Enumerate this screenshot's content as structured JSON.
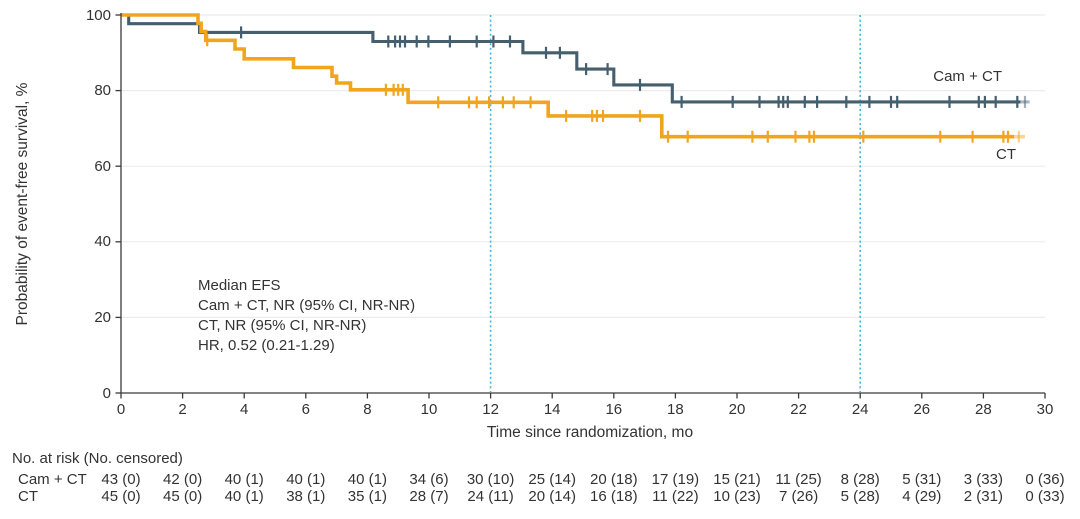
{
  "chart_data": {
    "type": "line",
    "subtype": "kaplan-meier-step",
    "title": "",
    "xlabel": "Time since randomization, mo",
    "ylabel": "Probability of event-free survival, %",
    "xlim": [
      0,
      30
    ],
    "ylim": [
      0,
      100
    ],
    "xticks": [
      0,
      2,
      4,
      6,
      8,
      10,
      12,
      14,
      16,
      18,
      20,
      22,
      24,
      26,
      28,
      30
    ],
    "yticks": [
      0,
      20,
      40,
      60,
      80,
      100
    ],
    "grid": "horizontal",
    "reference_lines_x": [
      12,
      24
    ],
    "reference_line_color": "#3CB4E5",
    "annotation": [
      "Median EFS",
      "Cam + CT, NR (95% CI, NR-NR)",
      "CT, NR (95% CI, NR-NR)",
      "HR, 0.52 (0.21-1.29)"
    ],
    "series": [
      {
        "name": "Cam + CT",
        "color": "#455F6E",
        "steps": [
          [
            0,
            100
          ],
          [
            0.25,
            97.7
          ],
          [
            2.55,
            95.4
          ],
          [
            8.18,
            93.0
          ],
          [
            13.05,
            90.0
          ],
          [
            14.8,
            85.7
          ],
          [
            16.0,
            81.5
          ],
          [
            17.9,
            77.0
          ]
        ],
        "end_solid": 29.2,
        "end": 29.5,
        "censor_times": [
          3.9,
          8.68,
          8.9,
          9.06,
          9.22,
          9.6,
          9.98,
          10.68,
          11.55,
          12.09,
          12.63,
          13.8,
          14.25,
          15.1,
          15.8,
          16.85,
          18.2,
          19.86,
          20.73,
          21.35,
          21.5,
          21.65,
          22.2,
          22.6,
          23.55,
          24.3,
          25.0,
          25.2,
          26.9,
          27.85,
          28.05,
          28.4,
          29.1,
          29.35
        ]
      },
      {
        "name": "CT",
        "color": "#F1A51F",
        "steps": [
          [
            0,
            100
          ],
          [
            2.5,
            97.8
          ],
          [
            2.6,
            95.6
          ],
          [
            2.75,
            93.3
          ],
          [
            3.7,
            91.0
          ],
          [
            4.0,
            88.4
          ],
          [
            5.6,
            86.1
          ],
          [
            6.85,
            83.8
          ],
          [
            7.0,
            82.0
          ],
          [
            7.45,
            80.2
          ],
          [
            9.32,
            76.9
          ],
          [
            13.87,
            73.3
          ],
          [
            17.56,
            67.8
          ]
        ],
        "end_solid": 29.0,
        "end": 29.35,
        "censor_times": [
          2.8,
          8.6,
          8.85,
          9.0,
          9.15,
          10.3,
          11.3,
          11.55,
          11.95,
          12.4,
          12.75,
          13.3,
          14.45,
          15.3,
          15.45,
          15.65,
          16.85,
          17.76,
          18.4,
          20.5,
          21.0,
          21.9,
          22.35,
          22.5,
          24.1,
          26.6,
          27.65,
          28.65,
          28.8,
          29.15
        ]
      }
    ],
    "colors": {
      "grid": "#ECECEC",
      "axis": "#3A3A3A",
      "text": "#333333"
    }
  },
  "risk_table": {
    "header": "No. at risk (No. censored)",
    "times": [
      0,
      2,
      4,
      6,
      8,
      10,
      12,
      14,
      16,
      18,
      20,
      22,
      24,
      26,
      28,
      30
    ],
    "rows": [
      {
        "label": "Cam + CT",
        "values": [
          "43 (0)",
          "42 (0)",
          "40 (1)",
          "40 (1)",
          "40 (1)",
          "34 (6)",
          "30 (10)",
          "25 (14)",
          "20 (18)",
          "17 (19)",
          "15 (21)",
          "11 (25)",
          "8 (28)",
          "5 (31)",
          "3 (33)",
          "0 (36)"
        ]
      },
      {
        "label": "CT",
        "values": [
          "45 (0)",
          "45 (0)",
          "40 (1)",
          "38 (1)",
          "35 (1)",
          "28 (7)",
          "24 (11)",
          "20 (14)",
          "16 (18)",
          "11 (22)",
          "10 (23)",
          "7 (26)",
          "5 (28)",
          "4 (29)",
          "2 (31)",
          "0 (33)"
        ]
      }
    ]
  }
}
